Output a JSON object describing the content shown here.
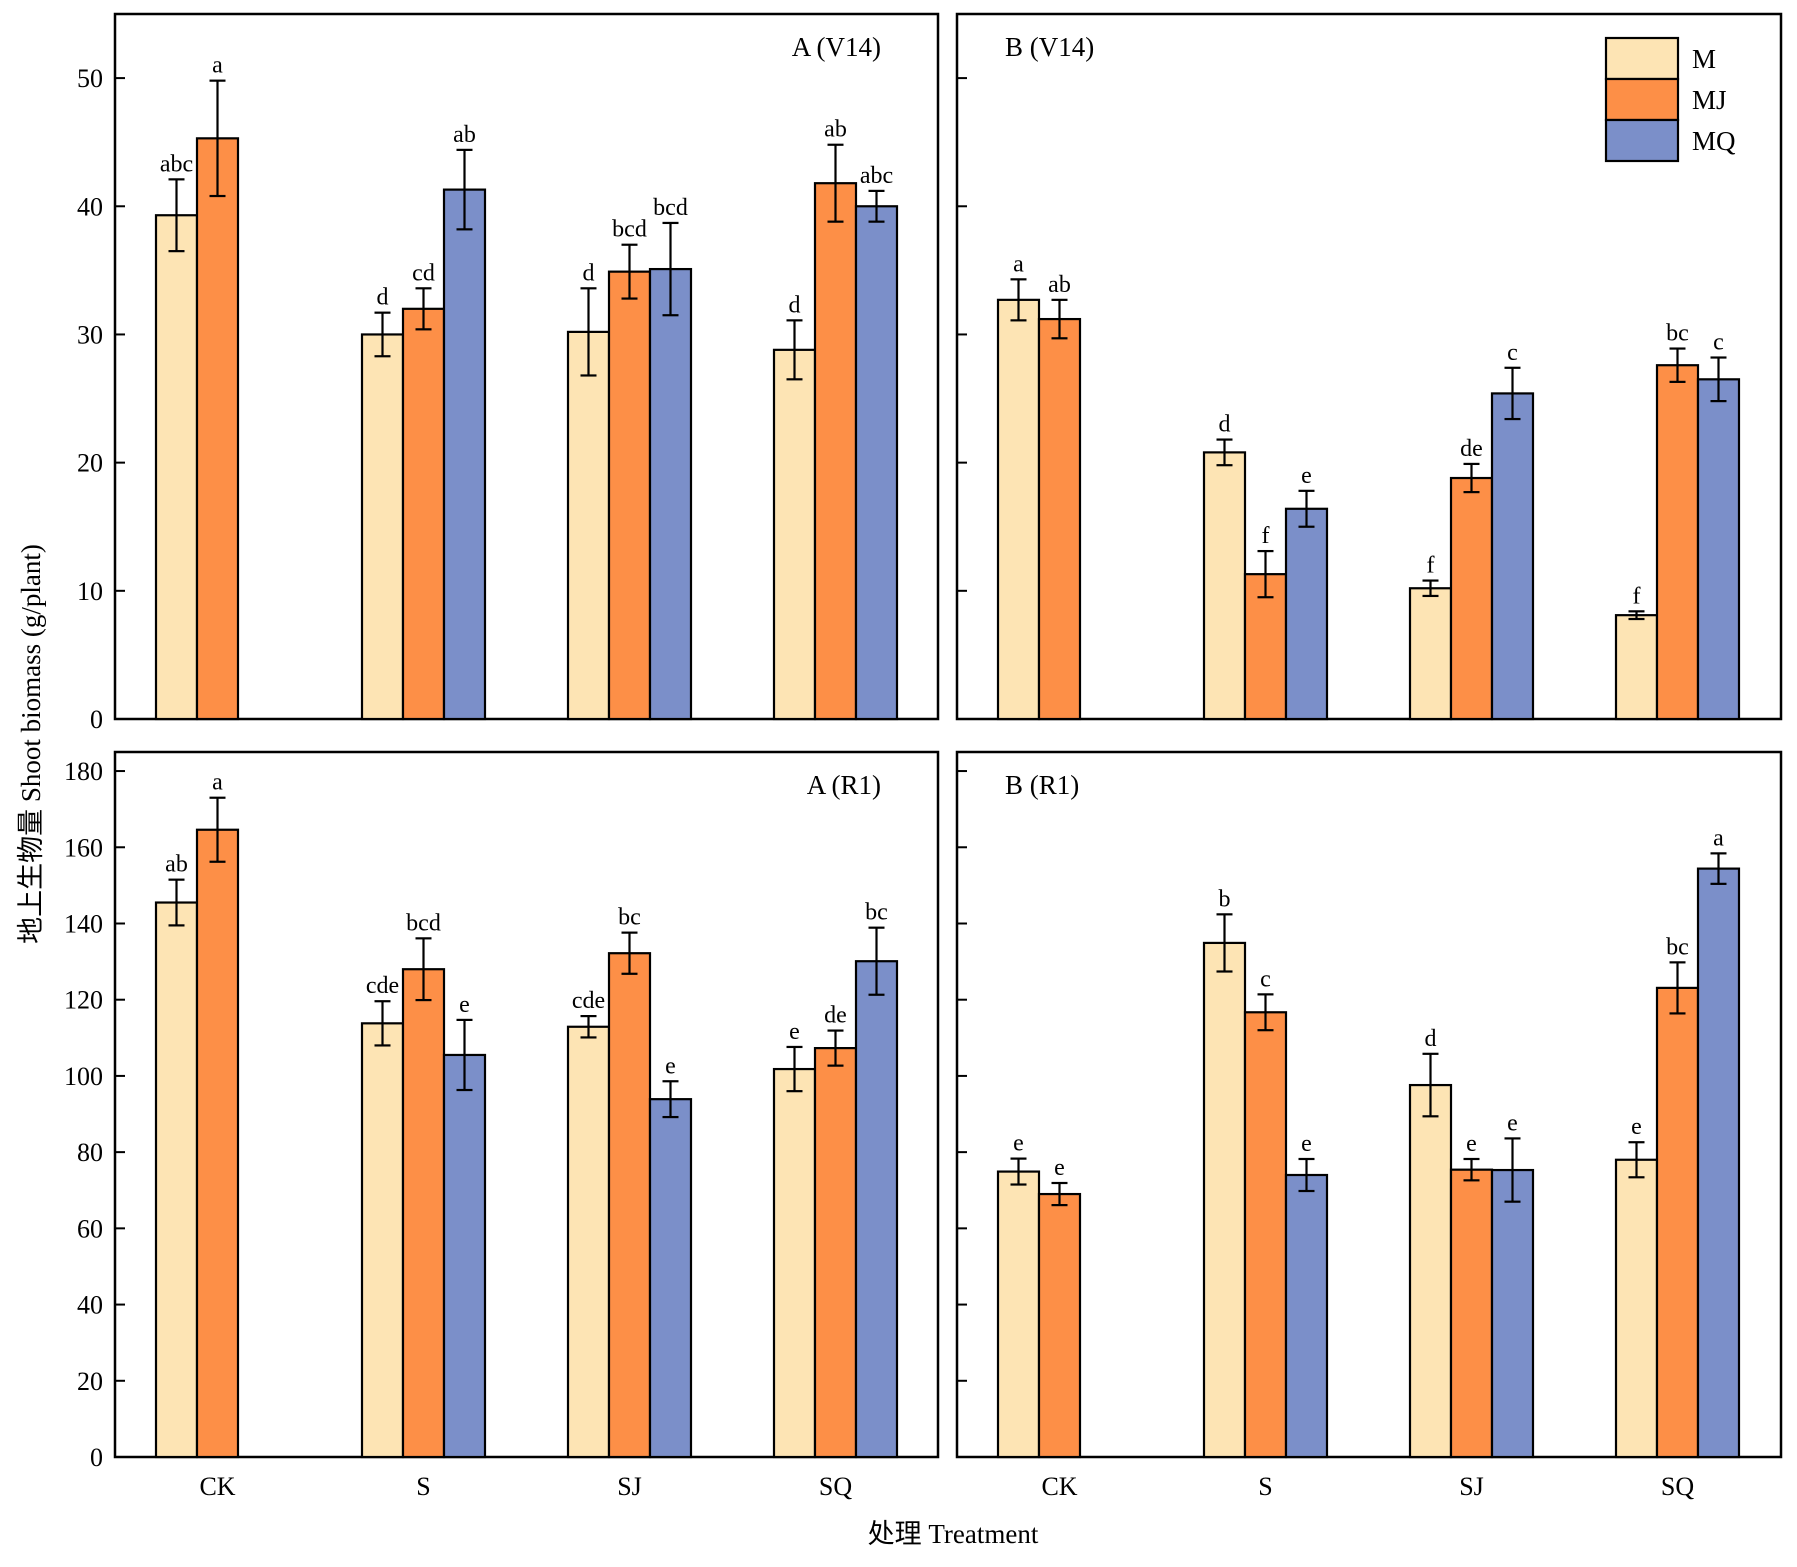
{
  "figure": {
    "ylabel": "地上生物量 Shoot biomass (g/plant)",
    "xlabel": "处理 Treatment"
  },
  "legend": [
    {
      "name": "M",
      "color": "#FDE4B4"
    },
    {
      "name": "MJ",
      "color": "#FD8F47"
    },
    {
      "name": "MQ",
      "color": "#7B8FC9"
    }
  ],
  "chart_data": [
    {
      "type": "bar",
      "title": "A (V14)",
      "categories": [
        "CK",
        "S",
        "SJ",
        "SQ"
      ],
      "ylim": [
        0,
        55
      ],
      "yticks": [
        0,
        10,
        20,
        30,
        40,
        50
      ],
      "series": [
        {
          "name": "M",
          "values": [
            39.3,
            30.0,
            30.2,
            28.8
          ],
          "errors": [
            2.8,
            1.7,
            3.4,
            2.3
          ],
          "labels": [
            "abc",
            "d",
            "d",
            "d"
          ]
        },
        {
          "name": "MJ",
          "values": [
            45.3,
            32.0,
            34.9,
            41.8
          ],
          "errors": [
            4.5,
            1.6,
            2.1,
            3.0
          ],
          "labels": [
            "a",
            "cd",
            "bcd",
            "ab"
          ]
        },
        {
          "name": "MQ",
          "values": [
            null,
            41.3,
            35.1,
            40.0
          ],
          "errors": [
            null,
            3.1,
            3.6,
            1.2
          ],
          "labels": [
            null,
            "ab",
            "bcd",
            "abc"
          ]
        }
      ]
    },
    {
      "type": "bar",
      "title": "B (V14)",
      "categories": [
        "CK",
        "S",
        "SJ",
        "SQ"
      ],
      "ylim": [
        0,
        55
      ],
      "yticks": [
        0,
        10,
        20,
        30,
        40,
        50
      ],
      "series": [
        {
          "name": "M",
          "values": [
            32.7,
            20.8,
            10.2,
            8.1
          ],
          "errors": [
            1.6,
            1.0,
            0.6,
            0.3
          ],
          "labels": [
            "a",
            "d",
            "f",
            "f"
          ]
        },
        {
          "name": "MJ",
          "values": [
            31.2,
            11.3,
            18.8,
            27.6
          ],
          "errors": [
            1.5,
            1.8,
            1.1,
            1.3
          ],
          "labels": [
            "ab",
            "f",
            "de",
            "bc"
          ]
        },
        {
          "name": "MQ",
          "values": [
            null,
            16.4,
            25.4,
            26.5
          ],
          "errors": [
            null,
            1.4,
            2.0,
            1.7
          ],
          "labels": [
            null,
            "e",
            "c",
            "c"
          ]
        }
      ]
    },
    {
      "type": "bar",
      "title": "A (R1)",
      "categories": [
        "CK",
        "S",
        "SJ",
        "SQ"
      ],
      "ylim": [
        0,
        185
      ],
      "yticks": [
        0,
        20,
        40,
        60,
        80,
        100,
        120,
        140,
        160,
        180
      ],
      "series": [
        {
          "name": "M",
          "values": [
            145.5,
            113.8,
            112.9,
            101.8
          ],
          "errors": [
            6.0,
            5.8,
            2.8,
            5.8
          ],
          "labels": [
            "ab",
            "cde",
            "cde",
            "e"
          ]
        },
        {
          "name": "MJ",
          "values": [
            164.6,
            128.0,
            132.2,
            107.3
          ],
          "errors": [
            8.4,
            8.1,
            5.4,
            4.6
          ],
          "labels": [
            "a",
            "bcd",
            "bc",
            "de"
          ]
        },
        {
          "name": "MQ",
          "values": [
            null,
            105.5,
            93.9,
            130.1
          ],
          "errors": [
            null,
            9.2,
            4.7,
            8.8
          ],
          "labels": [
            null,
            "e",
            "e",
            "bc"
          ]
        }
      ]
    },
    {
      "type": "bar",
      "title": "B (R1)",
      "categories": [
        "CK",
        "S",
        "SJ",
        "SQ"
      ],
      "ylim": [
        0,
        185
      ],
      "yticks": [
        0,
        20,
        40,
        60,
        80,
        100,
        120,
        140,
        160,
        180
      ],
      "series": [
        {
          "name": "M",
          "values": [
            74.9,
            134.9,
            97.6,
            78.0
          ],
          "errors": [
            3.4,
            7.5,
            8.2,
            4.6
          ],
          "labels": [
            "e",
            "b",
            "d",
            "e"
          ]
        },
        {
          "name": "MJ",
          "values": [
            69.0,
            116.7,
            75.4,
            123.1
          ],
          "errors": [
            2.9,
            4.7,
            2.8,
            6.7
          ],
          "labels": [
            "e",
            "c",
            "e",
            "bc"
          ]
        },
        {
          "name": "MQ",
          "values": [
            null,
            74.0,
            75.3,
            154.4
          ],
          "errors": [
            null,
            4.2,
            8.3,
            4.0
          ],
          "labels": [
            null,
            "e",
            "e",
            "a"
          ]
        }
      ]
    }
  ]
}
